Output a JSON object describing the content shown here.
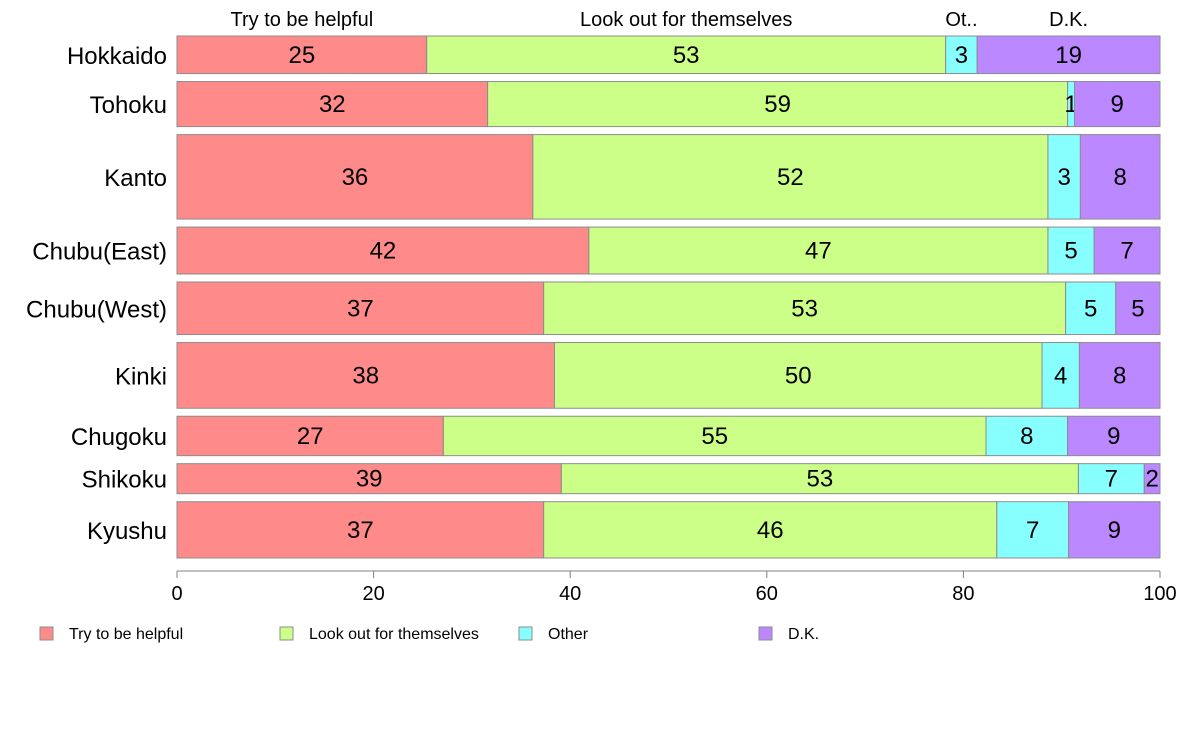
{
  "chart_data": {
    "type": "bar",
    "orientation": "horizontal",
    "stacked": true,
    "categories": [
      "Hokkaido",
      "Tohoku",
      "Kanto",
      "Chubu(East)",
      "Chubu(West)",
      "Kinki",
      "Chugoku",
      "Shikoku",
      "Kyushu"
    ],
    "series": [
      {
        "name": "Try to be helpful",
        "header": "Try to be helpful",
        "color": "#ff8a8a",
        "values": [
          25.4,
          31.6,
          36.2,
          41.9,
          37.3,
          38.4,
          27.1,
          39.1,
          37.3
        ],
        "labels": [
          "25",
          "32",
          "36",
          "42",
          "37",
          "38",
          "27",
          "39",
          "37"
        ]
      },
      {
        "name": "Look out for themselves",
        "header": "Look out for themselves",
        "color": "#ccff88",
        "values": [
          52.8,
          59.0,
          52.4,
          46.7,
          53.1,
          49.6,
          55.2,
          52.6,
          46.1
        ],
        "labels": [
          "53",
          "59",
          "52",
          "47",
          "53",
          "50",
          "55",
          "53",
          "46"
        ]
      },
      {
        "name": "Other",
        "header": "Ot..",
        "color": "#88ffff",
        "values": [
          3.2,
          0.7,
          3.3,
          4.7,
          5.1,
          3.8,
          8.3,
          6.7,
          7.3
        ],
        "labels": [
          "3",
          "1",
          "3",
          "5",
          "5",
          "4",
          "8",
          "7",
          "7"
        ]
      },
      {
        "name": "D.K.",
        "header": "D.K.",
        "color": "#bb88ff",
        "values": [
          18.6,
          8.7,
          8.1,
          6.7,
          4.5,
          8.2,
          9.4,
          1.6,
          9.3
        ],
        "labels": [
          "19",
          "9",
          "8",
          "7",
          "5",
          "8",
          "9",
          "2",
          "9"
        ]
      }
    ],
    "bar_weights": [
      2.0,
      2.4,
      4.5,
      2.5,
      2.8,
      3.5,
      2.1,
      1.6,
      3.0
    ],
    "xlim": [
      0,
      100
    ],
    "xticks": [
      "0",
      "20",
      "40",
      "60",
      "80",
      "100"
    ],
    "legend_position": "bottom-left",
    "grid": false
  }
}
